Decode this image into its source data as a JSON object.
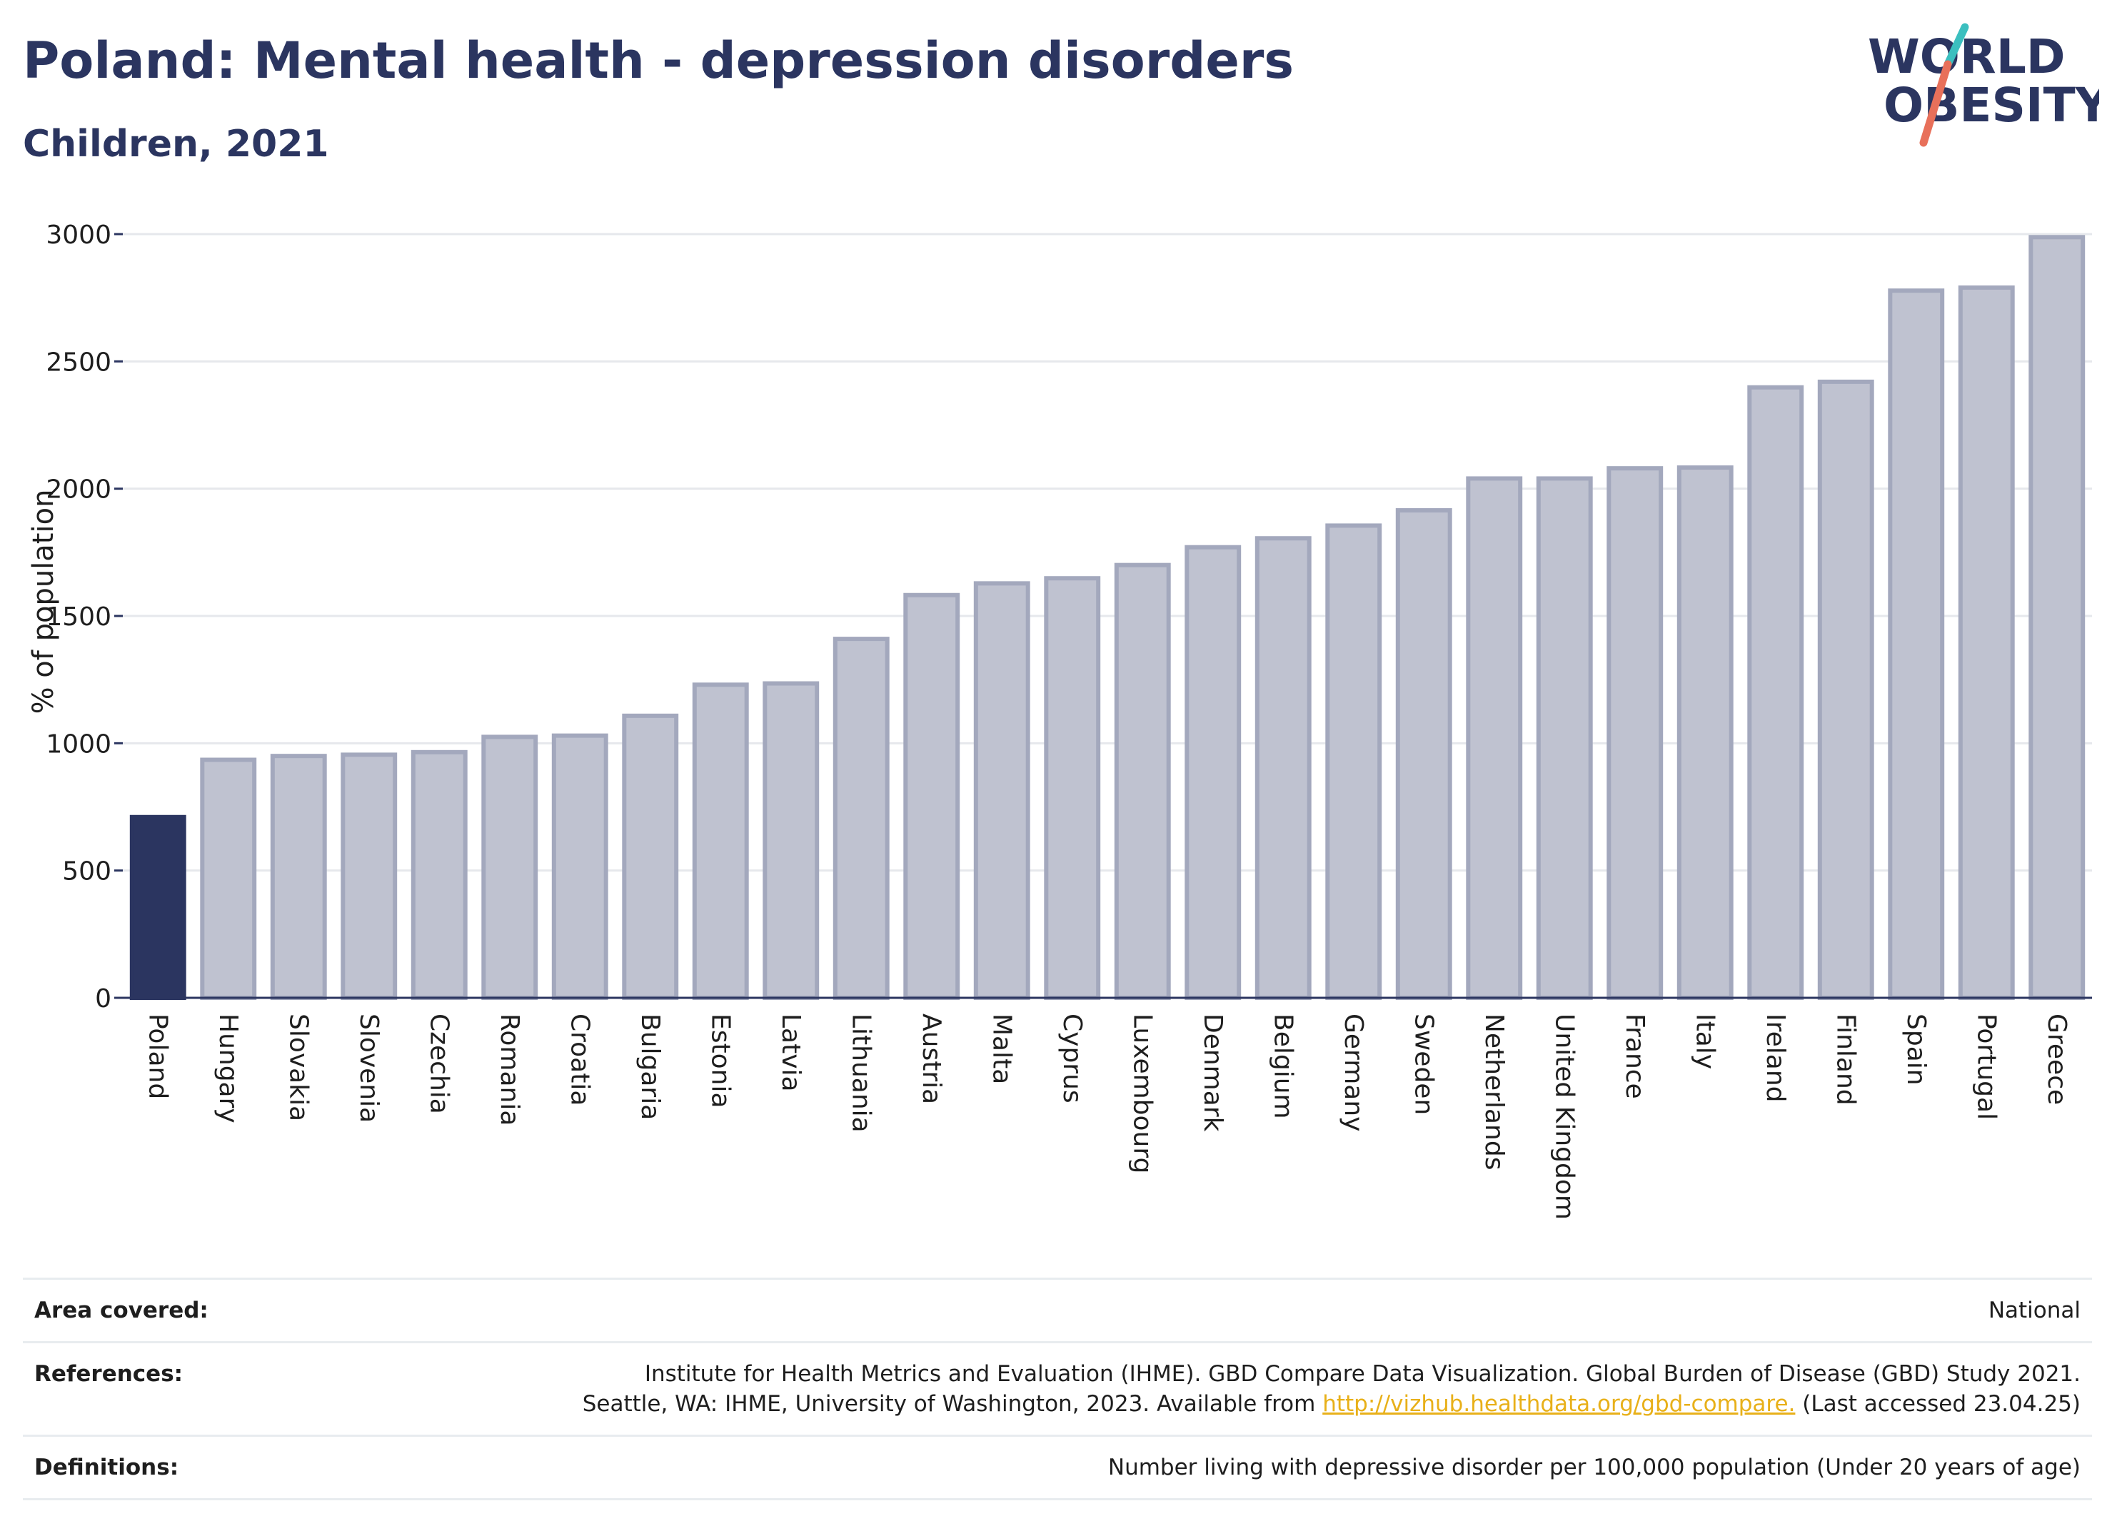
{
  "header": {
    "title": "Poland: Mental health - depression disorders",
    "subtitle": "Children, 2021"
  },
  "logo": {
    "line1": "WORLD",
    "line2": "OBESITY",
    "colors": {
      "text": "#2b3560",
      "slash_top": "#3bbfbf",
      "slash_bottom": "#e8705a"
    }
  },
  "chart_data": {
    "type": "bar",
    "ylabel": "% of population",
    "xlabel": "",
    "ylim": [
      0,
      3000
    ],
    "yticks": [
      0,
      500,
      1000,
      1500,
      2000,
      2500,
      3000
    ],
    "grid": true,
    "highlight": "Poland",
    "colors": {
      "highlight": "#2b3560",
      "bar_fill": "#bfc2d0",
      "bar_stroke": "#a3a8bd"
    },
    "categories": [
      "Poland",
      "Hungary",
      "Slovakia",
      "Slovenia",
      "Czechia",
      "Romania",
      "Croatia",
      "Bulgaria",
      "Estonia",
      "Latvia",
      "Lithuania",
      "Austria",
      "Malta",
      "Cyprus",
      "Luxembourg",
      "Denmark",
      "Belgium",
      "Germany",
      "Sweden",
      "Netherlands",
      "United Kingdom",
      "France",
      "Italy",
      "Ireland",
      "Finland",
      "Spain",
      "Portugal",
      "Greece"
    ],
    "values": [
      710,
      935,
      950,
      955,
      965,
      1025,
      1030,
      1108,
      1230,
      1235,
      1410,
      1582,
      1628,
      1648,
      1700,
      1770,
      1805,
      1855,
      1915,
      2040,
      2040,
      2080,
      2083,
      2398,
      2420,
      2778,
      2790,
      2988
    ]
  },
  "footer": {
    "area_label": "Area covered:",
    "area_value": "National",
    "references_label": "References:",
    "references_line1": "Institute for Health Metrics and Evaluation (IHME). GBD Compare Data Visualization. Global Burden of Disease (GBD) Study 2021.",
    "references_line2_pre": "Seattle, WA: IHME, University of Washington, 2023. Available from ",
    "references_link": "http://vizhub.healthdata.org/gbd-compare.",
    "references_line2_post": " (Last accessed 23.04.25)",
    "definitions_label": "Definitions:",
    "definitions_value": "Number living with depressive disorder per 100,000 population (Under 20 years of age)"
  }
}
